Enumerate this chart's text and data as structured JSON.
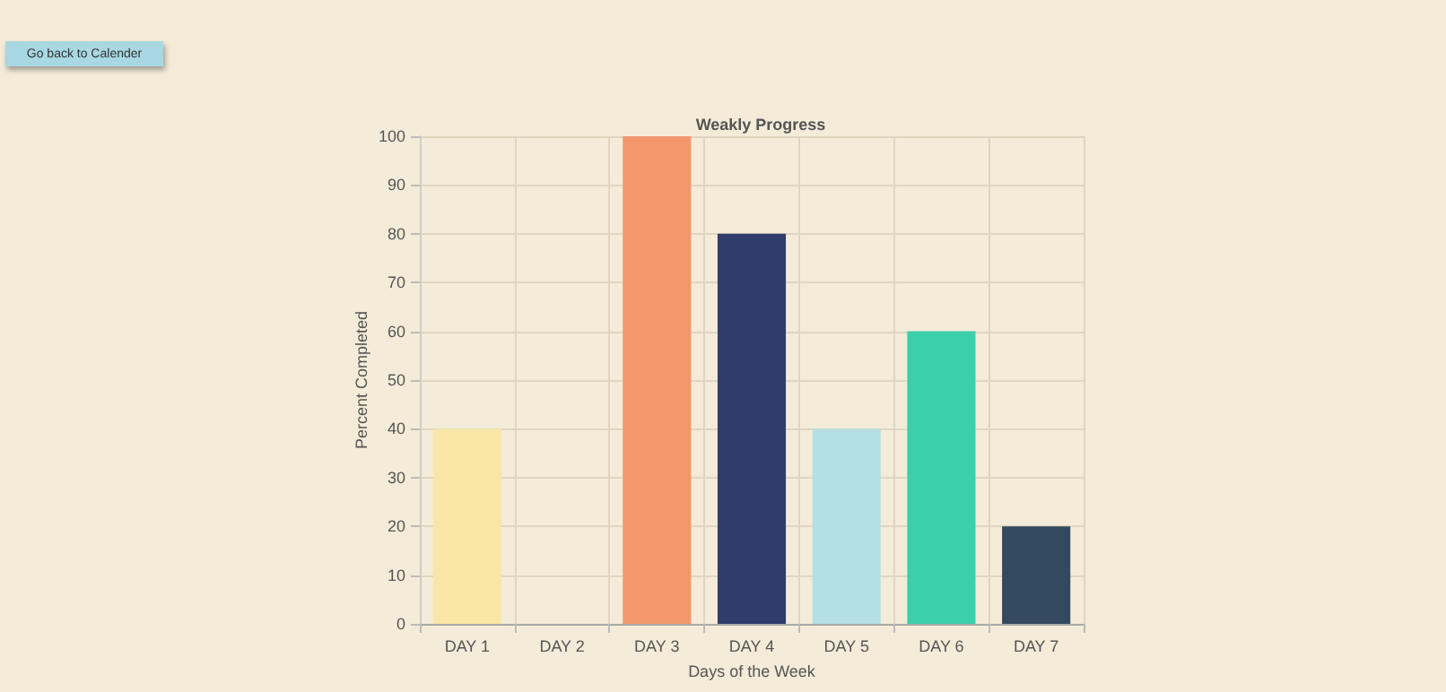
{
  "chart_data": {
    "type": "bar",
    "title": "Weakly Progress",
    "xlabel": "Days of the Week",
    "ylabel": "Percent Completed",
    "categories": [
      "DAY 1",
      "DAY 2",
      "DAY 3",
      "DAY 4",
      "DAY 5",
      "DAY 6",
      "DAY 7"
    ],
    "values": [
      40,
      0,
      100,
      80,
      40,
      60,
      20
    ],
    "colors": [
      "#fae6a6",
      "#f4e8d0",
      "#f4976c",
      "#303c6c",
      "#b4dfe5",
      "#3ccfab",
      "#33495f"
    ],
    "ylim": [
      0,
      100
    ],
    "yticks": [
      0,
      10,
      20,
      30,
      40,
      50,
      60,
      70,
      80,
      90,
      100
    ],
    "grid": true,
    "annotations": [
      "Go back to Calender"
    ]
  }
}
